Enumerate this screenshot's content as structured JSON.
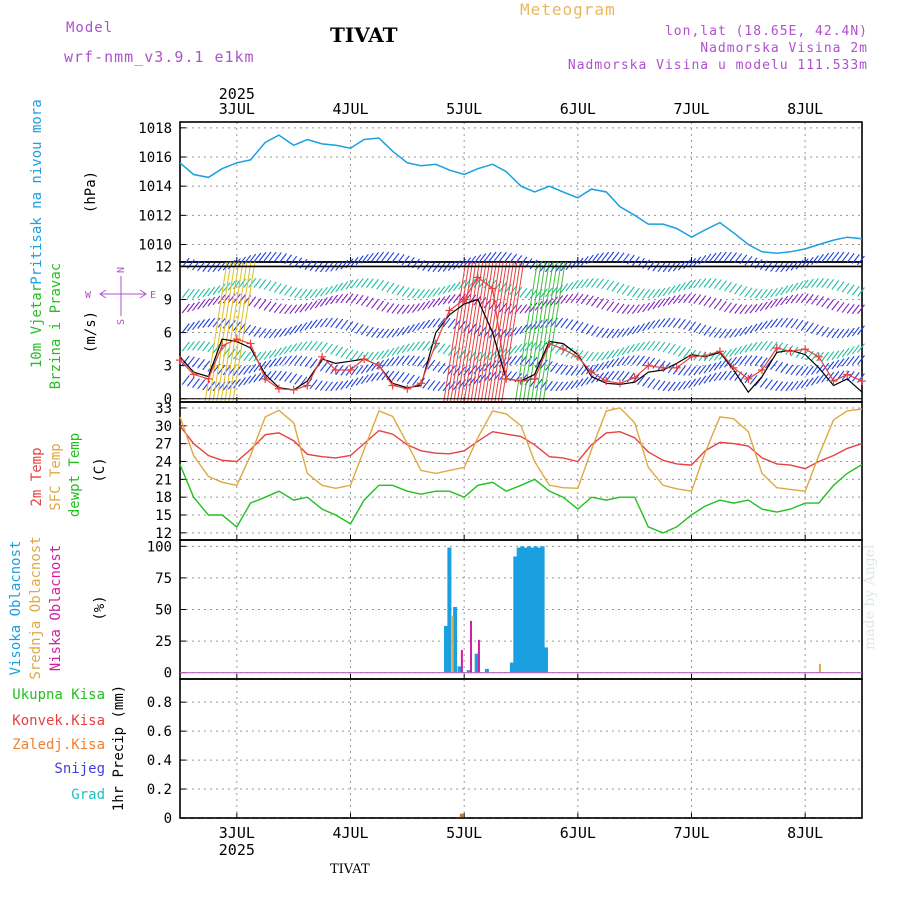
{
  "header": {
    "model_label": "Model",
    "model_run": "wrf-nmm_v3.9.1 e1km",
    "title": "TIVAT",
    "meteogram": "Meteogram",
    "lonlat": "lon,lat (18.65E, 42.4N)",
    "altitude": "Nadmorska Visina 2m",
    "model_altitude": "Nadmorska Visina u modelu 111.533m"
  },
  "footer": {
    "station": "TIVAT",
    "watermark": "made by Angel"
  },
  "colors": {
    "pressure": "#1aa0e0",
    "temp2m": "#e84040",
    "sfc_temp": "#e0a840",
    "dewpt": "#22c020",
    "cloud_high": "#1aa0e0",
    "cloud_mid": "#e0a840",
    "cloud_low": "#d020a0",
    "precip_total": "#22c020",
    "precip_conv": "#e84040",
    "precip_frz": "#f08030",
    "precip_snow": "#4040e0",
    "precip_grad": "#20c0c0",
    "wind_label": "#22c020",
    "wind_compass": "#b050d0"
  },
  "chart_data": {
    "type": "line",
    "x_axis": {
      "top_year": "2025",
      "bottom_year": "2025",
      "day_labels": [
        "3JUL",
        "4JUL",
        "5JUL",
        "6JUL",
        "7JUL",
        "8JUL"
      ],
      "day_positions": [
        1,
        2,
        3,
        4,
        5,
        6
      ],
      "xlim": [
        0.5,
        6.5
      ]
    },
    "panels": {
      "pressure": {
        "labels": [
          "Pritisak na nivou mora",
          "(hPa)"
        ],
        "ylim": [
          1008.8,
          1018.4
        ],
        "yticks": [
          "1018",
          "1016",
          "1014",
          "1012",
          "1010"
        ],
        "ytick_values": [
          1018,
          1016,
          1014,
          1012,
          1010
        ],
        "series": [
          {
            "name": "Pritisak na nivou mora",
            "color": "#1aa0e0",
            "x": [
              0.5,
              0.62,
              0.75,
              0.87,
              1.0,
              1.12,
              1.25,
              1.37,
              1.5,
              1.62,
              1.75,
              1.87,
              2.0,
              2.12,
              2.25,
              2.37,
              2.5,
              2.62,
              2.75,
              2.87,
              3.0,
              3.12,
              3.25,
              3.37,
              3.5,
              3.62,
              3.75,
              3.87,
              4.0,
              4.12,
              4.25,
              4.37,
              4.5,
              4.62,
              4.75,
              4.87,
              5.0,
              5.12,
              5.25,
              5.37,
              5.5,
              5.62,
              5.75,
              5.87,
              6.0,
              6.12,
              6.25,
              6.37,
              6.5
            ],
            "y": [
              1015.6,
              1014.8,
              1014.6,
              1015.2,
              1015.6,
              1015.8,
              1017.0,
              1017.5,
              1016.8,
              1017.2,
              1016.9,
              1016.8,
              1016.6,
              1017.2,
              1017.3,
              1016.4,
              1015.6,
              1015.4,
              1015.5,
              1015.1,
              1014.8,
              1015.2,
              1015.5,
              1015.0,
              1014.0,
              1013.6,
              1014.0,
              1013.6,
              1013.2,
              1013.8,
              1013.6,
              1012.6,
              1012.0,
              1011.4,
              1011.4,
              1011.1,
              1010.5,
              1011.0,
              1011.5,
              1010.8,
              1010.0,
              1009.5,
              1009.4,
              1009.5,
              1009.7,
              1010.0,
              1010.3,
              1010.5,
              1010.4
            ]
          }
        ]
      },
      "wind": {
        "labels": [
          "10m Vjetar",
          "Brzina i Pravac",
          "(m/s)"
        ],
        "compass": {
          "n": "N",
          "s": "S",
          "w": "W",
          "e": "E"
        },
        "ylim": [
          -0.3,
          12.4
        ],
        "yticks": [
          "12",
          "9",
          "6",
          "3",
          "0"
        ],
        "ytick_values": [
          12,
          9,
          6,
          3,
          0
        ],
        "series": [
          {
            "color": "#e84040",
            "x": [
              0.5,
              0.62,
              0.75,
              0.87,
              1.0,
              1.12,
              1.25,
              1.37,
              1.5,
              1.62,
              1.75,
              1.87,
              2.0,
              2.12,
              2.25,
              2.37,
              2.5,
              2.62,
              2.75,
              2.87,
              3.0,
              3.12,
              3.25,
              3.37,
              3.5,
              3.62,
              3.75,
              3.87,
              4.0,
              4.12,
              4.25,
              4.37,
              4.5,
              4.62,
              4.75,
              4.87,
              5.0,
              5.12,
              5.25,
              5.37,
              5.5,
              5.62,
              5.75,
              5.87,
              6.0,
              6.12,
              6.25,
              6.37,
              6.5
            ],
            "y": [
              3.5,
              2.2,
              1.8,
              4.8,
              5.4,
              5.0,
              1.8,
              0.9,
              0.8,
              1.2,
              3.8,
              2.6,
              2.6,
              3.6,
              3.0,
              1.2,
              0.9,
              1.4,
              5.0,
              8.0,
              9.0,
              11.0,
              10.0,
              1.8,
              1.6,
              1.8,
              5.0,
              4.5,
              3.8,
              2.4,
              1.6,
              1.4,
              1.9,
              3.0,
              2.8,
              2.8,
              3.8,
              3.9,
              4.3,
              2.8,
              1.8,
              2.6,
              4.6,
              4.3,
              4.5,
              3.8,
              1.6,
              2.2,
              1.6
            ]
          },
          {
            "color": "#000000",
            "x": [
              0.5,
              0.62,
              0.75,
              0.87,
              1.0,
              1.12,
              1.25,
              1.37,
              1.5,
              1.62,
              1.75,
              1.87,
              2.0,
              2.12,
              2.25,
              2.37,
              2.5,
              2.62,
              2.75,
              2.87,
              3.0,
              3.12,
              3.25,
              3.37,
              3.5,
              3.62,
              3.75,
              3.87,
              4.0,
              4.12,
              4.25,
              4.37,
              4.5,
              4.62,
              4.75,
              4.87,
              5.0,
              5.12,
              5.25,
              5.37,
              5.5,
              5.62,
              5.75,
              5.87,
              6.0,
              6.12,
              6.25,
              6.37,
              6.5
            ],
            "y": [
              3.8,
              2.4,
              2.0,
              5.4,
              5.2,
              4.6,
              2.2,
              1.0,
              0.8,
              1.6,
              3.6,
              3.2,
              3.4,
              3.6,
              3.0,
              1.4,
              1.0,
              1.2,
              6.0,
              7.6,
              8.6,
              9.0,
              6.0,
              1.8,
              1.6,
              2.2,
              5.2,
              5.0,
              4.0,
              2.0,
              1.4,
              1.3,
              1.5,
              2.4,
              2.6,
              3.2,
              4.0,
              3.8,
              4.2,
              2.6,
              0.6,
              2.0,
              4.2,
              4.4,
              4.0,
              2.8,
              1.2,
              1.8,
              0.6
            ]
          }
        ]
      },
      "temperature": {
        "labels": [
          "2m Temp",
          "SFC Temp",
          "dewpt Temp",
          "(C)"
        ],
        "ylim": [
          10.8,
          34.0
        ],
        "yticks": [
          "33",
          "30",
          "27",
          "24",
          "21",
          "18",
          "15",
          "12"
        ],
        "ytick_values": [
          33,
          30,
          27,
          24,
          21,
          18,
          15,
          12
        ],
        "series": [
          {
            "name": "2m Temp",
            "color": "#e84040",
            "x": [
              0.5,
              0.62,
              0.75,
              0.87,
              1.0,
              1.12,
              1.25,
              1.37,
              1.5,
              1.62,
              1.75,
              1.87,
              2.0,
              2.12,
              2.25,
              2.37,
              2.5,
              2.62,
              2.75,
              2.87,
              3.0,
              3.12,
              3.25,
              3.37,
              3.5,
              3.62,
              3.75,
              3.87,
              4.0,
              4.12,
              4.25,
              4.37,
              4.5,
              4.62,
              4.75,
              4.87,
              5.0,
              5.12,
              5.25,
              5.37,
              5.5,
              5.62,
              5.75,
              5.87,
              6.0,
              6.12,
              6.25,
              6.37,
              6.5
            ],
            "y": [
              30.0,
              27.0,
              25.0,
              24.2,
              24.0,
              26.0,
              28.5,
              28.8,
              27.5,
              25.2,
              24.8,
              24.6,
              25.0,
              27.0,
              29.2,
              28.6,
              26.8,
              25.8,
              25.4,
              25.3,
              25.8,
              27.4,
              29.0,
              28.6,
              28.2,
              26.8,
              24.8,
              24.6,
              24.0,
              26.8,
              28.8,
              29.0,
              28.0,
              25.6,
              24.2,
              23.6,
              23.4,
              25.8,
              27.2,
              27.0,
              26.6,
              24.6,
              23.6,
              23.4,
              22.8,
              24.0,
              25.0,
              26.2,
              27.0
            ]
          },
          {
            "name": "SFC Temp",
            "color": "#e0a840",
            "x": [
              0.5,
              0.62,
              0.75,
              0.87,
              1.0,
              1.12,
              1.25,
              1.37,
              1.5,
              1.62,
              1.75,
              1.87,
              2.0,
              2.12,
              2.25,
              2.37,
              2.5,
              2.62,
              2.75,
              2.87,
              3.0,
              3.12,
              3.25,
              3.37,
              3.5,
              3.62,
              3.75,
              3.87,
              4.0,
              4.12,
              4.25,
              4.37,
              4.5,
              4.62,
              4.75,
              4.87,
              5.0,
              5.12,
              5.25,
              5.37,
              5.5,
              5.62,
              5.75,
              5.87,
              6.0,
              6.12,
              6.25,
              6.37,
              6.5
            ],
            "y": [
              31.5,
              25.0,
              21.5,
              20.5,
              20.0,
              25.0,
              31.5,
              32.6,
              30.5,
              22.0,
              20.0,
              19.5,
              20.0,
              26.0,
              32.5,
              31.6,
              27.0,
              22.5,
              22.0,
              22.5,
              23.0,
              28.0,
              32.5,
              32.0,
              30.0,
              24.0,
              20.0,
              19.6,
              19.5,
              26.0,
              32.5,
              33.0,
              30.5,
              23.0,
              20.0,
              19.4,
              19.0,
              25.5,
              31.5,
              31.2,
              29.0,
              22.0,
              19.6,
              19.3,
              19.0,
              25.0,
              31.0,
              32.5,
              32.8
            ]
          },
          {
            "name": "dewpt Temp",
            "color": "#22c020",
            "x": [
              0.5,
              0.62,
              0.75,
              0.87,
              1.0,
              1.12,
              1.25,
              1.37,
              1.5,
              1.62,
              1.75,
              1.87,
              2.0,
              2.12,
              2.25,
              2.37,
              2.5,
              2.62,
              2.75,
              2.87,
              3.0,
              3.12,
              3.25,
              3.37,
              3.5,
              3.62,
              3.75,
              3.87,
              4.0,
              4.12,
              4.25,
              4.37,
              4.5,
              4.62,
              4.75,
              4.87,
              5.0,
              5.12,
              5.25,
              5.37,
              5.5,
              5.62,
              5.75,
              5.87,
              6.0,
              6.12,
              6.25,
              6.37,
              6.5
            ],
            "y": [
              23.5,
              18.0,
              15.0,
              15.0,
              13.0,
              17.0,
              18.0,
              19.0,
              17.5,
              18.0,
              16.0,
              15.0,
              13.5,
              17.5,
              20.0,
              20.0,
              19.0,
              18.5,
              19.0,
              19.0,
              18.0,
              20.0,
              20.5,
              19.0,
              20.0,
              21.0,
              19.0,
              18.0,
              16.0,
              18.0,
              17.5,
              18.0,
              18.0,
              13.0,
              12.0,
              13.0,
              15.0,
              16.5,
              17.5,
              17.0,
              17.5,
              16.0,
              15.5,
              16.0,
              17.0,
              17.0,
              20.0,
              22.0,
              23.5
            ]
          }
        ]
      },
      "cloud": {
        "labels": [
          "Visoka Oblacnost",
          "Srednja Oblacnost",
          "Niska Oblacnost",
          "(%)"
        ],
        "ylim": [
          -5,
          105
        ],
        "yticks": [
          "100",
          "75",
          "50",
          "25",
          "0"
        ],
        "ytick_values": [
          100,
          75,
          50,
          25,
          0
        ],
        "type": "bar",
        "bars_high": {
          "x": [
            2.84,
            2.87,
            2.92,
            2.96,
            3.04,
            3.11,
            3.2,
            3.42,
            3.45,
            3.48,
            3.51,
            3.54,
            3.57,
            3.6,
            3.63,
            3.66,
            3.69,
            3.72
          ],
          "y": [
            37,
            99,
            52,
            5,
            2,
            15,
            3,
            8,
            92,
            99,
            100,
            99,
            100,
            99,
            100,
            99,
            100,
            20
          ]
        },
        "bars_mid": {
          "x": [
            2.9,
            6.13
          ],
          "y": [
            45,
            7
          ]
        },
        "bars_low": {
          "x": [
            2.98,
            3.06,
            3.13
          ],
          "y": [
            18,
            41,
            26
          ]
        }
      },
      "precip": {
        "labels": [
          "Ukupna Kisa",
          "Konvek.Kisa",
          "Zaledj.Kisa",
          "Snijeg",
          "Grad",
          "1hr Precip (mm)"
        ],
        "ylim": [
          0,
          0.96
        ],
        "yticks": [
          "0.8",
          "0.6",
          "0.4",
          "0.2",
          "0"
        ],
        "ytick_values": [
          0.8,
          0.6,
          0.4,
          0.2,
          0
        ],
        "type": "bar",
        "bars": [
          {
            "x": 2.98,
            "y": 0.03,
            "color": "#b08040"
          }
        ]
      }
    }
  }
}
